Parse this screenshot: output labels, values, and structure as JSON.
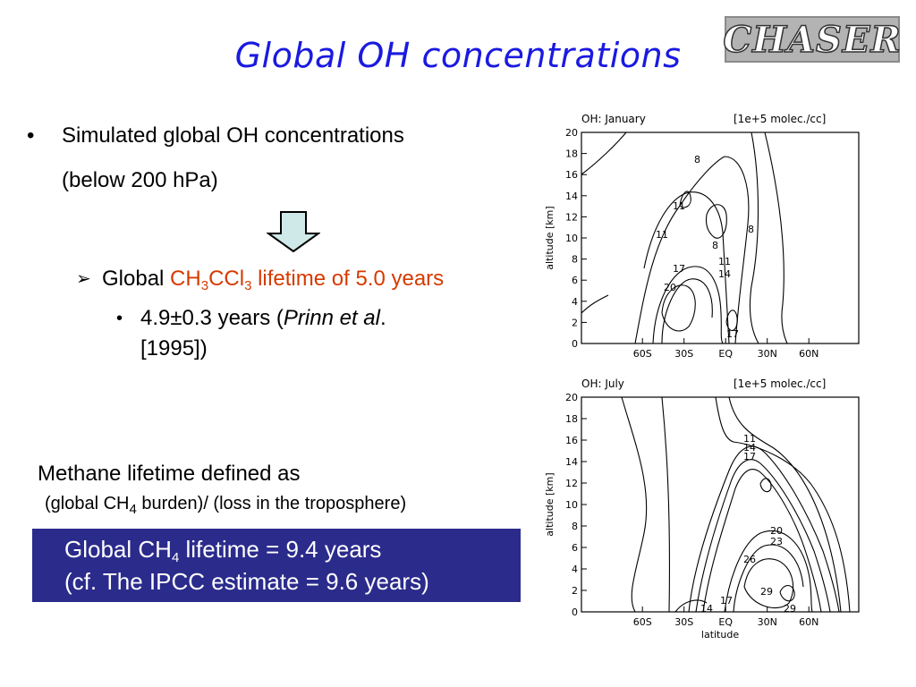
{
  "title": "Global OH concentrations",
  "logo": "CHASER",
  "bullet1": {
    "marker": "•",
    "line1": "Simulated global OH concentrations",
    "line2": "(below 200 hPa)"
  },
  "sub_bullet": {
    "marker": "➢",
    "prefix": "Global ",
    "ch": "CH",
    "ch_sub": "3",
    "ccl": "CCl",
    "ccl_sub": "3",
    "suffix": " lifetime of  5.0 years"
  },
  "sub_sub_bullet": {
    "marker": "•",
    "line1_a": "4.9±0.3 years (",
    "line1_italic": "Prinn et al",
    "line1_b": ".",
    "line2": "[1995])"
  },
  "methane": {
    "line1": "Methane lifetime defined as",
    "line2_a": "(global CH",
    "line2_sub": "4",
    "line2_b": " burden)/ (loss in the troposphere)"
  },
  "box": {
    "line1_a": "Global CH",
    "line1_sub": "4",
    "line1_b": " lifetime = 9.4 years",
    "line2": "(cf.  The IPCC estimate = 9.6 years)"
  },
  "plots": [
    {
      "label": "OH: January",
      "units": "[1e+5 molec./cc]",
      "ylabel": "altitude  [km]",
      "xlabel": "",
      "yticks": [
        "0",
        "2",
        "4",
        "6",
        "8",
        "10",
        "12",
        "14",
        "16",
        "18",
        "20"
      ],
      "xticks": [
        "60S",
        "30S",
        "EQ",
        "30N",
        "60N"
      ],
      "contour_labels": [
        "8",
        "11",
        "11",
        "8",
        "8",
        "11",
        "17",
        "14",
        "20",
        "17"
      ]
    },
    {
      "label": "OH: July",
      "units": "[1e+5 molec./cc]",
      "ylabel": "altitude  [km]",
      "xlabel": "latitude",
      "yticks": [
        "0",
        "2",
        "4",
        "6",
        "8",
        "10",
        "12",
        "14",
        "16",
        "18",
        "20"
      ],
      "xticks": [
        "60S",
        "30S",
        "EQ",
        "30N",
        "60N"
      ],
      "contour_labels": [
        "11",
        "14",
        "17",
        "20",
        "23",
        "26",
        "29",
        "17",
        "14",
        "29"
      ]
    }
  ],
  "colors": {
    "title": "#1a1ae0",
    "accent_red": "#d63a00",
    "box_bg": "#2b2b8c",
    "arrow_fill": "#cfe8e8"
  }
}
